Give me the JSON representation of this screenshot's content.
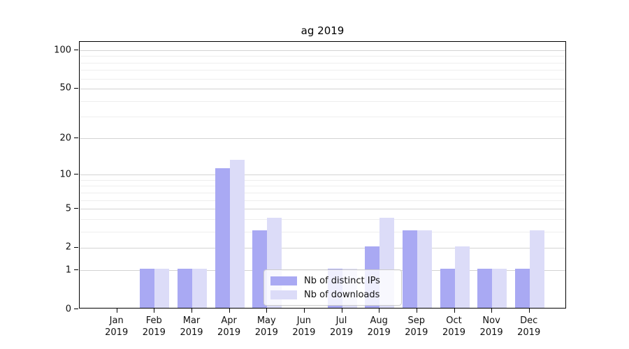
{
  "chart_data": {
    "type": "bar",
    "title": "ag 2019",
    "categories": [
      "Jan 2019",
      "Feb 2019",
      "Mar 2019",
      "Apr 2019",
      "May 2019",
      "Jun 2019",
      "Jul 2019",
      "Aug 2019",
      "Sep 2019",
      "Oct 2019",
      "Nov 2019",
      "Dec 2019"
    ],
    "series": [
      {
        "name": "Nb of distinct IPs",
        "color": "#a9a9f3",
        "values": [
          0,
          1,
          1,
          11,
          3,
          0,
          1,
          2,
          3,
          1,
          1,
          1
        ]
      },
      {
        "name": "Nb of downloads",
        "color": "#dcdcf8",
        "values": [
          0,
          1,
          1,
          13,
          4,
          0,
          1,
          4,
          3,
          2,
          1,
          3
        ]
      }
    ],
    "yscale": "log1p",
    "ylim": [
      0,
      100
    ],
    "y_ticks": [
      0,
      1,
      2,
      5,
      10,
      20,
      50,
      100
    ],
    "y_minor_ticks": [
      3,
      4,
      6,
      7,
      8,
      9,
      30,
      40,
      60,
      70,
      80,
      90
    ],
    "xlabel": "",
    "ylabel": "",
    "grid": "on",
    "legend": {
      "position": "lower center"
    },
    "colors": {
      "grid_major": "#d3d3d3",
      "grid_minor": "#eeeeee",
      "spine": "#000000",
      "text": "#111111",
      "legend_border": "#cccccc"
    }
  }
}
